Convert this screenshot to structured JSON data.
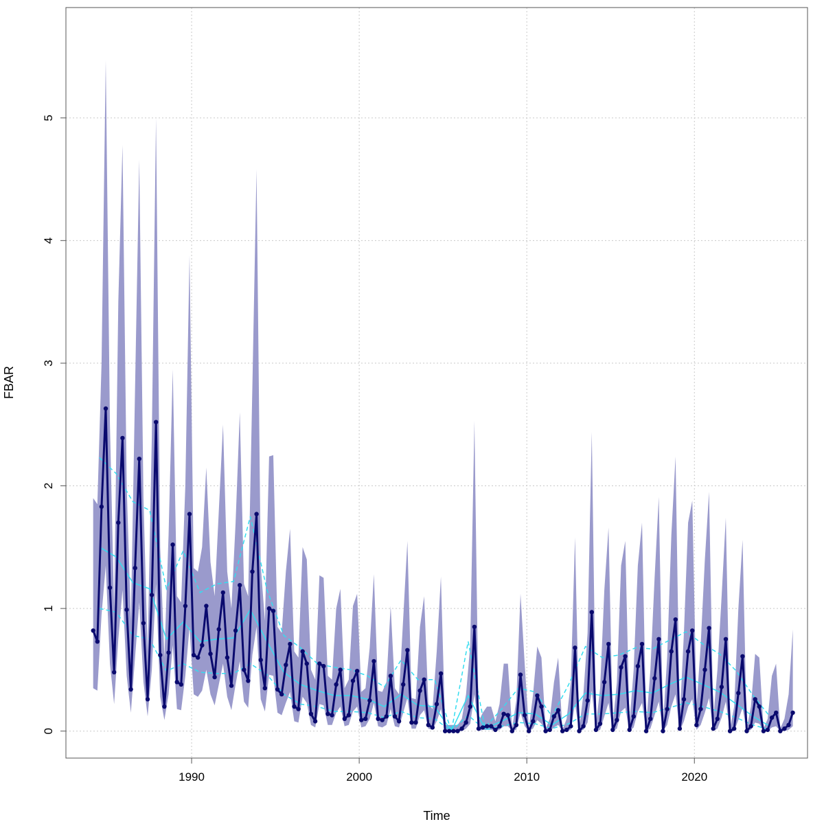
{
  "chart_data": {
    "type": "line",
    "title": "",
    "xlabel": "Time",
    "ylabel": "FBAR",
    "xlim": [
      1982.5,
      2026.75
    ],
    "ylim": [
      -0.22,
      5.9
    ],
    "x_ticks": [
      1990,
      2000,
      2010,
      2020
    ],
    "y_ticks": [
      0,
      1,
      2,
      3,
      4,
      5
    ],
    "grid": true,
    "legend": "none",
    "colors": {
      "band": "#9a9acc",
      "main": "#0a0a6e",
      "smooth": "#33ddf0",
      "grid": "#c8c8c8",
      "axis": "#555555"
    },
    "x_start": 1984.125,
    "x_step": 0.25,
    "series": [
      {
        "values": [
          0.82,
          0.73,
          1.83,
          2.63,
          1.17,
          0.48,
          1.7,
          2.39,
          0.99,
          0.34,
          1.33,
          2.22,
          0.88,
          0.26,
          1.11,
          2.52,
          0.62,
          0.2,
          0.64,
          1.52,
          0.4,
          0.38,
          1.02,
          1.77,
          0.62,
          0.6,
          0.7,
          1.02,
          0.63,
          0.44,
          0.83,
          1.13,
          0.6,
          0.37,
          0.82,
          1.19,
          0.5,
          0.41,
          1.3,
          1.77,
          0.58,
          0.35,
          1.0,
          0.98,
          0.34,
          0.3,
          0.54,
          0.71,
          0.2,
          0.18,
          0.65,
          0.55,
          0.14,
          0.08,
          0.55,
          0.53,
          0.14,
          0.13,
          0.38,
          0.5,
          0.1,
          0.13,
          0.41,
          0.49,
          0.09,
          0.1,
          0.25,
          0.57,
          0.1,
          0.09,
          0.12,
          0.45,
          0.12,
          0.08,
          0.38,
          0.66,
          0.07,
          0.07,
          0.33,
          0.42,
          0.05,
          0.03,
          0.22,
          0.47,
          0.0,
          0.0,
          0.0,
          0.0,
          0.02,
          0.07,
          0.2,
          0.85,
          0.02,
          0.03,
          0.04,
          0.04,
          0.01,
          0.04,
          0.14,
          0.13,
          0.0,
          0.05,
          0.46,
          0.13,
          0.0,
          0.08,
          0.29,
          0.2,
          0.0,
          0.01,
          0.12,
          0.17,
          0.0,
          0.01,
          0.04,
          0.68,
          0.0,
          0.04,
          0.25,
          0.97,
          0.01,
          0.06,
          0.4,
          0.71,
          0.01,
          0.09,
          0.52,
          0.61,
          0.01,
          0.12,
          0.53,
          0.71,
          0.0,
          0.1,
          0.43,
          0.75,
          0.0,
          0.18,
          0.65,
          0.91,
          0.02,
          0.26,
          0.65,
          0.82,
          0.05,
          0.18,
          0.5,
          0.84,
          0.02,
          0.1,
          0.36,
          0.75,
          0.0,
          0.02,
          0.31,
          0.61,
          0.0,
          0.04,
          0.26,
          0.2,
          0.0,
          0.01,
          0.11,
          0.15,
          0.0,
          0.02,
          0.05,
          0.15
        ]
      },
      {
        "values": [
          1.9,
          1.85,
          3.0,
          5.47,
          2.5,
          1.0,
          3.5,
          4.78,
          2.0,
          0.9,
          2.8,
          4.66,
          1.9,
          0.65,
          2.4,
          5.0,
          1.5,
          0.6,
          1.6,
          2.95,
          1.1,
          1.05,
          2.0,
          3.88,
          1.33,
          1.3,
          1.5,
          2.15,
          1.38,
          1.1,
          1.8,
          2.5,
          1.3,
          1.0,
          1.7,
          2.6,
          1.2,
          1.1,
          2.8,
          4.58,
          1.35,
          0.9,
          2.24,
          2.25,
          0.85,
          0.8,
          1.3,
          1.65,
          0.65,
          0.6,
          1.5,
          1.4,
          0.5,
          0.42,
          1.27,
          1.25,
          0.45,
          0.42,
          1.0,
          1.16,
          0.35,
          0.42,
          1.02,
          1.12,
          0.32,
          0.35,
          0.68,
          1.28,
          0.33,
          0.32,
          0.4,
          1.02,
          0.35,
          0.3,
          0.92,
          1.55,
          0.27,
          0.26,
          0.85,
          1.1,
          0.22,
          0.18,
          0.65,
          1.26,
          0.05,
          0.05,
          0.05,
          0.05,
          0.1,
          0.3,
          0.7,
          2.53,
          0.08,
          0.15,
          0.2,
          0.2,
          0.08,
          0.22,
          0.55,
          0.55,
          0.02,
          0.25,
          1.12,
          0.55,
          0.02,
          0.3,
          0.69,
          0.6,
          0.02,
          0.1,
          0.4,
          0.6,
          0.01,
          0.1,
          0.4,
          1.58,
          0.02,
          0.3,
          0.8,
          2.44,
          0.05,
          0.35,
          1.15,
          1.66,
          0.05,
          0.4,
          1.35,
          1.55,
          0.06,
          0.5,
          1.35,
          1.7,
          0.05,
          0.5,
          1.25,
          1.91,
          0.05,
          0.6,
          1.6,
          2.24,
          0.1,
          0.8,
          1.7,
          1.88,
          0.2,
          0.7,
          1.4,
          1.95,
          0.1,
          0.5,
          1.1,
          1.74,
          0.02,
          0.2,
          1.0,
          1.56,
          0.02,
          0.2,
          0.63,
          0.6,
          0.02,
          0.1,
          0.45,
          0.55,
          0.02,
          0.1,
          0.3,
          0.83
        ]
      },
      {
        "values": [
          0.35,
          0.33,
          0.95,
          1.35,
          0.55,
          0.22,
          0.75,
          1.15,
          0.45,
          0.15,
          0.6,
          1.05,
          0.4,
          0.12,
          0.5,
          1.2,
          0.28,
          0.09,
          0.3,
          0.7,
          0.18,
          0.17,
          0.45,
          0.85,
          0.3,
          0.28,
          0.33,
          0.5,
          0.3,
          0.21,
          0.38,
          0.55,
          0.28,
          0.17,
          0.38,
          0.57,
          0.24,
          0.19,
          0.62,
          0.85,
          0.26,
          0.16,
          0.46,
          0.45,
          0.15,
          0.13,
          0.23,
          0.32,
          0.08,
          0.07,
          0.28,
          0.23,
          0.05,
          0.03,
          0.22,
          0.21,
          0.05,
          0.05,
          0.15,
          0.2,
          0.04,
          0.05,
          0.16,
          0.2,
          0.03,
          0.04,
          0.1,
          0.23,
          0.04,
          0.03,
          0.05,
          0.18,
          0.04,
          0.03,
          0.15,
          0.27,
          0.02,
          0.02,
          0.13,
          0.17,
          0.02,
          0.01,
          0.08,
          0.18,
          0.0,
          0.0,
          0.0,
          0.0,
          0.0,
          0.02,
          0.06,
          0.3,
          0.0,
          0.01,
          0.01,
          0.01,
          0.0,
          0.01,
          0.04,
          0.04,
          0.0,
          0.01,
          0.15,
          0.04,
          0.0,
          0.02,
          0.09,
          0.06,
          0.0,
          0.0,
          0.03,
          0.05,
          0.0,
          0.0,
          0.01,
          0.22,
          0.0,
          0.01,
          0.07,
          0.33,
          0.0,
          0.01,
          0.12,
          0.23,
          0.0,
          0.02,
          0.16,
          0.19,
          0.0,
          0.03,
          0.16,
          0.23,
          0.0,
          0.02,
          0.13,
          0.24,
          0.0,
          0.05,
          0.2,
          0.3,
          0.0,
          0.08,
          0.2,
          0.26,
          0.01,
          0.05,
          0.15,
          0.27,
          0.0,
          0.02,
          0.11,
          0.24,
          0.0,
          0.0,
          0.09,
          0.19,
          0.0,
          0.01,
          0.07,
          0.06,
          0.0,
          0.0,
          0.03,
          0.04,
          0.0,
          0.0,
          0.01,
          0.04
        ]
      },
      {
        "x": [
          1984,
          1985,
          1986,
          1987,
          1988,
          1989,
          1990,
          1991,
          1992,
          1993,
          1994,
          1995,
          1996,
          1997,
          1998,
          1999,
          2000,
          2001,
          2002,
          2003,
          2004,
          2005,
          2006,
          2007,
          2008,
          2009,
          2010,
          2011,
          2012,
          2013,
          2014,
          2015,
          2016,
          2017,
          2018,
          2019,
          2020,
          2021,
          2022,
          2023,
          2024
        ],
        "values": [
          1.5,
          1.42,
          1.21,
          1.16,
          0.75,
          0.89,
          0.73,
          0.75,
          0.76,
          0.99,
          0.73,
          0.48,
          0.38,
          0.33,
          0.29,
          0.29,
          0.26,
          0.2,
          0.3,
          0.21,
          0.2,
          0.0,
          0.29,
          0.02,
          0.08,
          0.15,
          0.14,
          0.05,
          0.14,
          0.31,
          0.29,
          0.3,
          0.33,
          0.31,
          0.38,
          0.44,
          0.38,
          0.32,
          0.22,
          0.12,
          0.04
        ]
      },
      {
        "x": [
          1984,
          1985,
          1986,
          1987,
          1988,
          1989,
          1990,
          1991,
          1992,
          1993,
          1994,
          1995,
          1996,
          1997,
          1998,
          1999,
          2000,
          2001,
          2002,
          2003,
          2004,
          2005,
          2006,
          2007,
          2008,
          2009,
          2010,
          2011,
          2012,
          2013,
          2014,
          2015,
          2016,
          2017,
          2018,
          2019,
          2020,
          2021,
          2022,
          2023,
          2024
        ],
        "values": [
          2.23,
          2.1,
          1.87,
          1.8,
          1.16,
          1.47,
          1.13,
          1.2,
          1.22,
          1.75,
          1.15,
          0.78,
          0.68,
          0.55,
          0.52,
          0.5,
          0.45,
          0.36,
          0.58,
          0.42,
          0.42,
          0.0,
          0.73,
          0.03,
          0.18,
          0.35,
          0.32,
          0.12,
          0.38,
          0.69,
          0.6,
          0.62,
          0.68,
          0.67,
          0.74,
          0.81,
          0.71,
          0.63,
          0.49,
          0.29,
          0.12
        ]
      },
      {
        "x": [
          1984,
          1985,
          1986,
          1987,
          1988,
          1989,
          1990,
          1991,
          1992,
          1993,
          1994,
          1995,
          1996,
          1997,
          1998,
          1999,
          2000,
          2001,
          2002,
          2003,
          2004,
          2005,
          2006,
          2007,
          2008,
          2009,
          2010,
          2011,
          2012,
          2013,
          2014,
          2015,
          2016,
          2017,
          2018,
          2019,
          2020,
          2021,
          2022,
          2023,
          2024
        ],
        "values": [
          1.0,
          0.97,
          0.78,
          0.75,
          0.49,
          0.55,
          0.48,
          0.47,
          0.47,
          0.55,
          0.46,
          0.3,
          0.22,
          0.2,
          0.16,
          0.16,
          0.15,
          0.11,
          0.16,
          0.11,
          0.1,
          0.0,
          0.13,
          0.01,
          0.04,
          0.07,
          0.06,
          0.02,
          0.06,
          0.14,
          0.14,
          0.15,
          0.16,
          0.15,
          0.19,
          0.23,
          0.2,
          0.16,
          0.11,
          0.05,
          0.01
        ]
      }
    ]
  }
}
